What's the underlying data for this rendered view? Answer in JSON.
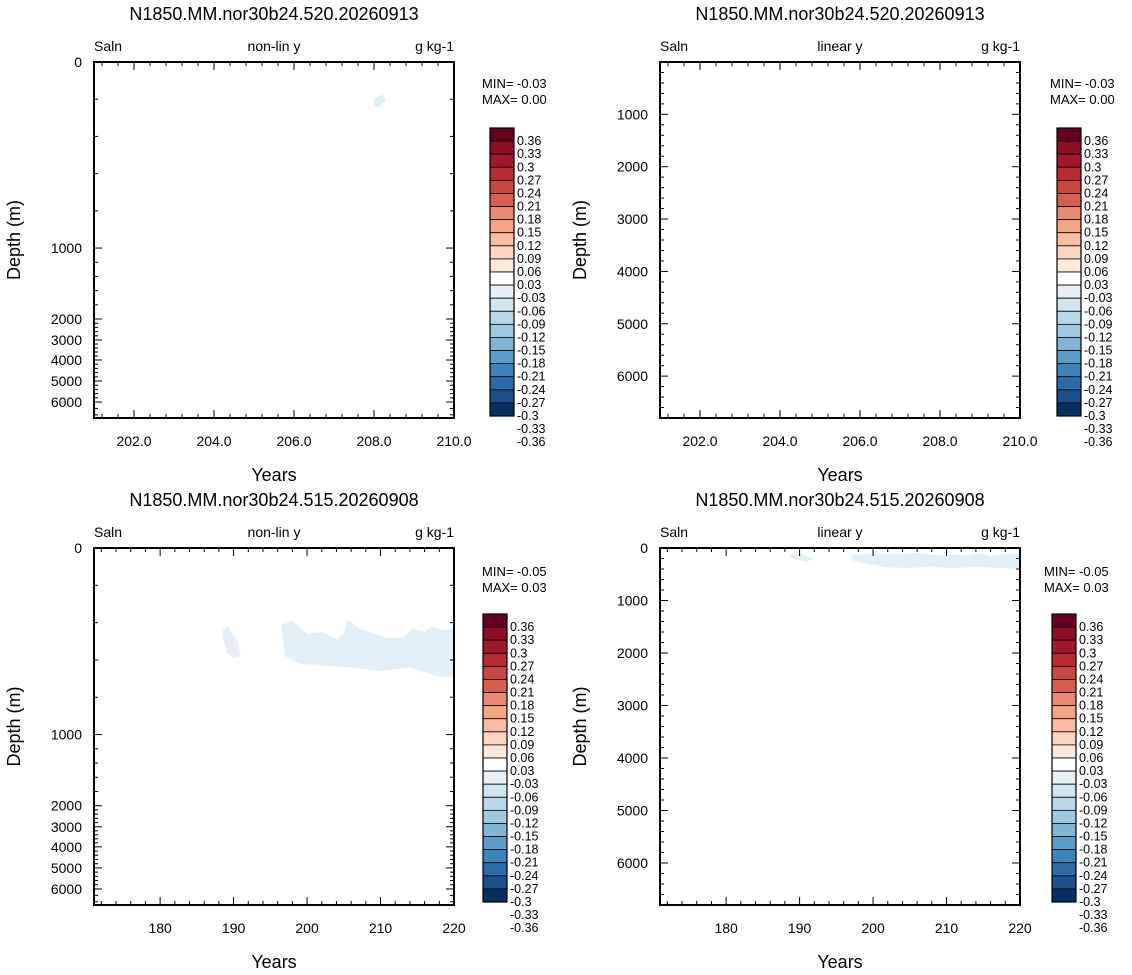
{
  "colors": {
    "palette": [
      "#053061",
      "#1d4f8a",
      "#2b6aab",
      "#3c84bc",
      "#5a9dca",
      "#7fb6d7",
      "#9ecae1",
      "#b8d8ea",
      "#d1e5f0",
      "#e6f0f7",
      "#ffffff",
      "#fde8dc",
      "#fcd5c0",
      "#f9bc9f",
      "#f4a582",
      "#e88b6e",
      "#d6604d",
      "#c84640",
      "#b92a32",
      "#a3172b",
      "#8d0d24",
      "#67001f"
    ],
    "contour_fill": "#e3eff7",
    "frame": "#000000"
  },
  "colorbar_labels": [
    "0.36",
    "0.33",
    "0.3",
    "0.27",
    "0.24",
    "0.21",
    "0.18",
    "0.15",
    "0.12",
    "0.09",
    "0.06",
    "0.03",
    "-0.03",
    "-0.06",
    "-0.09",
    "-0.12",
    "-0.15",
    "-0.18",
    "-0.21",
    "-0.24",
    "-0.27",
    "-0.3",
    "-0.33",
    "-0.36"
  ],
  "chart_data": [
    {
      "type": "heatmap",
      "title": "N1850.MM.nor30b24.520.20260913",
      "left_label": "Saln",
      "center_label": "non-lin y",
      "right_label": "g kg-1",
      "xlabel": "Years",
      "ylabel": "Depth (m)",
      "xticks": [
        "202.0",
        "204.0",
        "206.0",
        "208.0",
        "210.0"
      ],
      "yticks": [
        "0",
        "1000",
        "2000",
        "3000",
        "4000",
        "5000",
        "6000"
      ],
      "xlim": [
        201,
        210
      ],
      "ylim": [
        0,
        6500
      ],
      "yscale": "non-linear",
      "stats": [
        "MIN= -0.03",
        "MAX=  0.00"
      ],
      "anomalies": [
        {
          "level": "-0.03 to 0",
          "x": [
            208.0,
            208.2,
            208.3,
            208.1,
            208.0
          ],
          "y": [
            200,
            170,
            200,
            250,
            230
          ]
        }
      ]
    },
    {
      "type": "heatmap",
      "title": "N1850.MM.nor30b24.520.20260913",
      "left_label": "Saln",
      "center_label": "linear y",
      "right_label": "g kg-1",
      "xlabel": "Years",
      "ylabel": "Depth (m)",
      "xticks": [
        "202.0",
        "204.0",
        "206.0",
        "208.0",
        "210.0"
      ],
      "yticks": [
        "1000",
        "2000",
        "3000",
        "4000",
        "5000",
        "6000"
      ],
      "xlim": [
        201,
        210
      ],
      "ylim": [
        0,
        6800
      ],
      "yscale": "linear",
      "stats": [
        "MIN= -0.03",
        "MAX=  0.00"
      ],
      "anomalies": []
    },
    {
      "type": "heatmap",
      "title": "N1850.MM.nor30b24.515.20260908",
      "left_label": "Saln",
      "center_label": "non-lin y",
      "right_label": "g kg-1",
      "xlabel": "Years",
      "ylabel": "Depth (m)",
      "xticks": [
        "180",
        "190",
        "200",
        "210",
        "220"
      ],
      "yticks": [
        "0",
        "1000",
        "2000",
        "3000",
        "4000",
        "5000",
        "6000"
      ],
      "xlim": [
        171,
        220
      ],
      "ylim": [
        0,
        6500
      ],
      "yscale": "non-linear",
      "stats": [
        "MIN= -0.05",
        "MAX=  0.03"
      ],
      "anomalies": [
        {
          "level": "-0.03 to 0",
          "x": [
            188.5,
            189.2,
            190.5,
            191,
            190,
            189,
            188.6
          ],
          "y": [
            440,
            420,
            500,
            580,
            590,
            560,
            480
          ]
        },
        {
          "level": "-0.03 to 0",
          "x": [
            196.5,
            198,
            200,
            202,
            204,
            205,
            205.5,
            207,
            209,
            211,
            213,
            214.5,
            216,
            217,
            218.5,
            220,
            220,
            218,
            214,
            210,
            206,
            202,
            199,
            197
          ],
          "y": [
            410,
            390,
            460,
            450,
            490,
            460,
            380,
            430,
            460,
            480,
            480,
            430,
            450,
            420,
            440,
            430,
            690,
            690,
            640,
            660,
            640,
            630,
            620,
            580
          ]
        }
      ]
    },
    {
      "type": "heatmap",
      "title": "N1850.MM.nor30b24.515.20260908",
      "left_label": "Saln",
      "center_label": "linear y",
      "right_label": "g kg-1",
      "xlabel": "Years",
      "ylabel": "Depth (m)",
      "xticks": [
        "180",
        "190",
        "200",
        "210",
        "220"
      ],
      "yticks": [
        "0",
        "1000",
        "2000",
        "3000",
        "4000",
        "5000",
        "6000"
      ],
      "xlim": [
        171,
        220
      ],
      "ylim": [
        0,
        6800
      ],
      "yscale": "linear",
      "stats": [
        "MIN= -0.05",
        "MAX=  0.03"
      ],
      "anomalies": [
        {
          "level": "-0.03 to 0",
          "x": [
            188.5,
            190,
            192,
            191,
            189
          ],
          "y": [
            120,
            110,
            200,
            260,
            200
          ]
        },
        {
          "level": "-0.03 to 0",
          "x": [
            197,
            200,
            204,
            206,
            209,
            211,
            213,
            214.5,
            216,
            218,
            220,
            220,
            217,
            214,
            211,
            208,
            205,
            202,
            199,
            197
          ],
          "y": [
            130,
            110,
            120,
            100,
            140,
            130,
            140,
            100,
            150,
            110,
            120,
            400,
            380,
            350,
            390,
            350,
            380,
            370,
            300,
            230
          ]
        }
      ]
    }
  ]
}
